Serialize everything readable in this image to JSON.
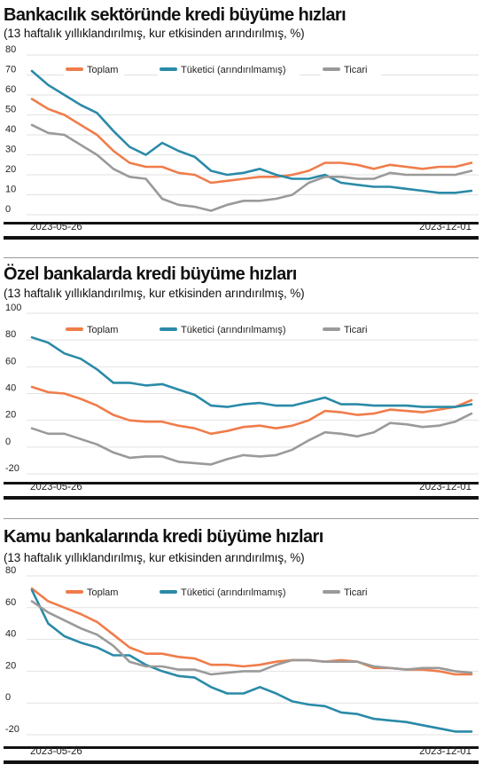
{
  "chart_data": [
    {
      "type": "line",
      "title": "Bankacılık sektöründe kredi büyüme hızları",
      "subtitle": "(13 haftalık yıllıklandırılmış, kur etkisinden arındırılmış, %)",
      "x_start_label": "2023-05-26",
      "x_end_label": "2023-12-01",
      "ylim": [
        0,
        80
      ],
      "yticks": [
        0,
        10,
        20,
        30,
        40,
        50,
        60,
        70,
        80
      ],
      "grid": true,
      "legend_position": "top",
      "series": [
        {
          "name": "Toplam",
          "color": "#f07c4a",
          "values": [
            58,
            53,
            50,
            45,
            40,
            32,
            26,
            24,
            24,
            21,
            20,
            16,
            17,
            18,
            19,
            19,
            20,
            22,
            26,
            26,
            25,
            23,
            25,
            24,
            23,
            24,
            24,
            26
          ]
        },
        {
          "name": "Tüketici (arındırılmamış)",
          "color": "#2a8aa8",
          "values": [
            72,
            65,
            60,
            55,
            51,
            42,
            34,
            30,
            36,
            32,
            29,
            22,
            20,
            21,
            23,
            20,
            18,
            18,
            20,
            16,
            15,
            14,
            14,
            13,
            12,
            11,
            11,
            12
          ]
        },
        {
          "name": "Ticari",
          "color": "#9a9a9a",
          "values": [
            45,
            41,
            40,
            35,
            30,
            23,
            19,
            18,
            8,
            5,
            4,
            2,
            5,
            7,
            7,
            8,
            10,
            16,
            19,
            19,
            18,
            18,
            21,
            20,
            20,
            20,
            20,
            22
          ]
        }
      ]
    },
    {
      "type": "line",
      "title": "Özel bankalarda kredi büyüme hızları",
      "subtitle": "(13 haftalık yıllıklandırılmış, kur etkisinden arındırılmış, %)",
      "x_start_label": "2023-05-26",
      "x_end_label": "2023-12-01",
      "ylim": [
        -20,
        100
      ],
      "yticks": [
        -20,
        0,
        20,
        40,
        60,
        80,
        100
      ],
      "grid": true,
      "legend_position": "top",
      "series": [
        {
          "name": "Toplam",
          "color": "#f07c4a",
          "values": [
            45,
            41,
            40,
            36,
            31,
            24,
            20,
            19,
            19,
            16,
            14,
            10,
            12,
            15,
            16,
            14,
            16,
            20,
            27,
            26,
            24,
            25,
            28,
            27,
            26,
            28,
            30,
            35
          ]
        },
        {
          "name": "Tüketici (arındırılmamış)",
          "color": "#2a8aa8",
          "values": [
            82,
            78,
            70,
            66,
            58,
            48,
            48,
            46,
            47,
            43,
            39,
            31,
            30,
            32,
            33,
            31,
            31,
            34,
            37,
            32,
            32,
            31,
            31,
            31,
            30,
            30,
            30,
            32
          ]
        },
        {
          "name": "Ticari",
          "color": "#9a9a9a",
          "values": [
            14,
            10,
            10,
            6,
            2,
            -4,
            -8,
            -7,
            -7,
            -11,
            -12,
            -13,
            -9,
            -6,
            -7,
            -6,
            -2,
            5,
            11,
            10,
            8,
            11,
            18,
            17,
            15,
            16,
            19,
            25
          ]
        }
      ]
    },
    {
      "type": "line",
      "title": "Kamu bankalarında kredi büyüme hızları",
      "subtitle": "(13 haftalık yıllıklandırılmış, kur etkisinden arındırılmış, %)",
      "x_start_label": "2023-05-26",
      "x_end_label": "2023-12-01",
      "ylim": [
        -20,
        80
      ],
      "yticks": [
        -20,
        0,
        20,
        40,
        60,
        80
      ],
      "grid": true,
      "legend_position": "top",
      "series": [
        {
          "name": "Toplam",
          "color": "#f07c4a",
          "values": [
            72,
            64,
            60,
            56,
            51,
            43,
            35,
            31,
            31,
            29,
            28,
            24,
            24,
            23,
            24,
            26,
            27,
            27,
            26,
            27,
            26,
            22,
            22,
            21,
            21,
            20,
            18,
            18
          ]
        },
        {
          "name": "Tüketici (arındırılmamış)",
          "color": "#2a8aa8",
          "values": [
            71,
            50,
            42,
            38,
            35,
            30,
            30,
            24,
            20,
            17,
            16,
            10,
            6,
            6,
            10,
            6,
            1,
            -1,
            -2,
            -6,
            -7,
            -10,
            -11,
            -12,
            -14,
            -16,
            -18,
            -18
          ]
        },
        {
          "name": "Ticari",
          "color": "#9a9a9a",
          "values": [
            64,
            57,
            52,
            47,
            43,
            36,
            26,
            23,
            23,
            21,
            21,
            18,
            19,
            20,
            20,
            24,
            27,
            27,
            26,
            26,
            26,
            23,
            22,
            21,
            22,
            22,
            20,
            19
          ]
        }
      ]
    }
  ]
}
